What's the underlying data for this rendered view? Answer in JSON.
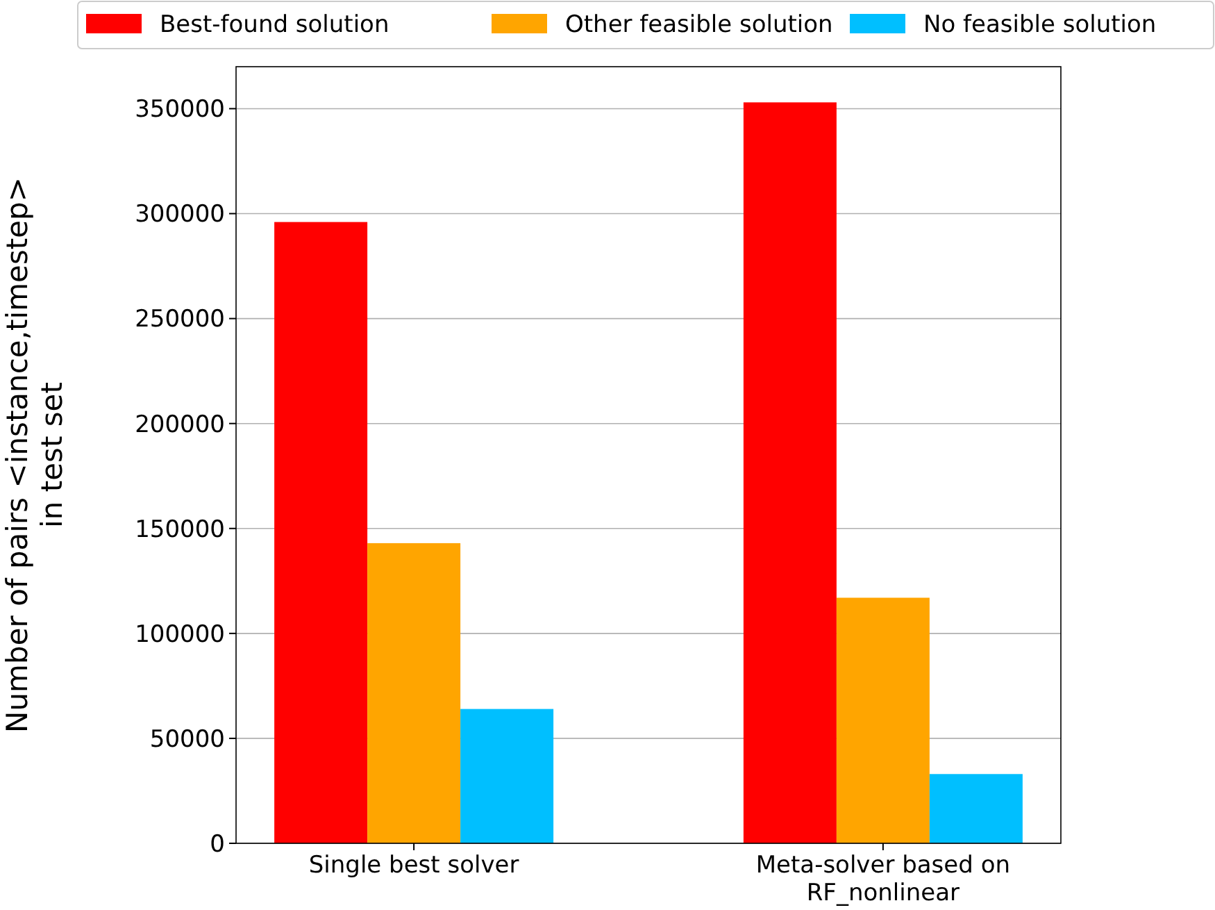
{
  "chart_data": {
    "type": "bar",
    "ylabel": "Number of pairs <instance,timestep>\nin test set",
    "categories": [
      "Single best solver",
      "Meta-solver based on RF_nonlinear"
    ],
    "series": [
      {
        "name": "Best-found solution",
        "color": "#ff0000",
        "values": [
          296000,
          353000
        ]
      },
      {
        "name": "Other feasible solution",
        "color": "#ffa500",
        "values": [
          143000,
          117000
        ]
      },
      {
        "name": "No feasible solution",
        "color": "#00bfff",
        "values": [
          64000,
          33000
        ]
      }
    ],
    "ylim": [
      0,
      370000
    ],
    "yticks": [
      0,
      50000,
      100000,
      150000,
      200000,
      250000,
      300000,
      350000
    ],
    "grid": "y",
    "legend": "top"
  }
}
